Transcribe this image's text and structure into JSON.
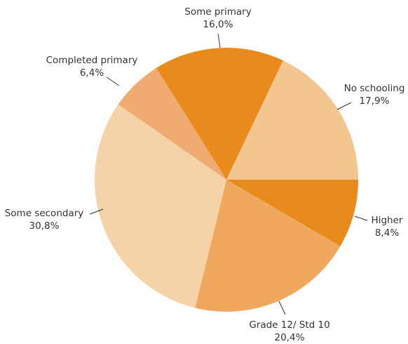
{
  "chart_data": {
    "type": "pie",
    "start_angle_deg": 0,
    "direction": "clockwise",
    "slices": [
      {
        "label": "Higher",
        "value": 8.4,
        "display": "8,4%",
        "color": "#e98a1d"
      },
      {
        "label": "Grade 12/ Std 10",
        "value": 20.4,
        "display": "20,4%",
        "color": "#f0a85e"
      },
      {
        "label": "Some secondary",
        "value": 30.8,
        "display": "30,8%",
        "color": "#f4d3a8"
      },
      {
        "label": "Completed primary",
        "value": 6.4,
        "display": "6,4%",
        "color": "#f0ab70"
      },
      {
        "label": "Some primary",
        "value": 16.0,
        "display": "16,0%",
        "color": "#e98a1d"
      },
      {
        "label": "No schooling",
        "value": 17.9,
        "display": "17,9%",
        "color": "#f3c690"
      }
    ]
  }
}
